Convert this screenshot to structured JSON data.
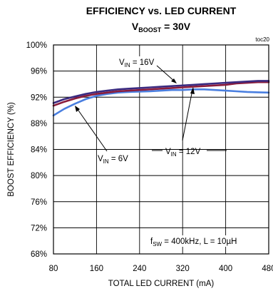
{
  "chart_data": {
    "type": "line",
    "title": "EFFICIENCY vs. LED CURRENT",
    "subtitle": {
      "main": "V",
      "sub": "BOOST",
      "rest": " = 30V"
    },
    "figure_tag": "toc20",
    "xlabel": "TOTAL LED CURRENT (mA)",
    "ylabel": "BOOST EFFICIENCY (%)",
    "xlim": [
      80,
      480
    ],
    "ylim": [
      68,
      100
    ],
    "x_ticks": [
      80,
      160,
      240,
      320,
      400,
      480
    ],
    "y_ticks": [
      68,
      72,
      76,
      80,
      84,
      88,
      92,
      96,
      100
    ],
    "y_tick_labels": [
      "68%",
      "72%",
      "76%",
      "80%",
      "84%",
      "88%",
      "92%",
      "96%",
      "100%"
    ],
    "grid": true,
    "series": [
      {
        "name": "VIN = 6V",
        "color": "#4a7fe0",
        "x": [
          80,
          100,
          120,
          140,
          160,
          180,
          200,
          220,
          240,
          260,
          280,
          300,
          320,
          340,
          360,
          380,
          400,
          420,
          440,
          460,
          480
        ],
        "y": [
          89.2,
          90.2,
          91.0,
          91.7,
          92.2,
          92.5,
          92.7,
          92.8,
          92.85,
          92.9,
          93.0,
          93.1,
          93.1,
          93.2,
          93.2,
          93.1,
          93.0,
          92.9,
          92.8,
          92.75,
          92.7
        ]
      },
      {
        "name": "VIN = 12V",
        "color": "#8a1c3c",
        "x": [
          80,
          100,
          120,
          140,
          160,
          180,
          200,
          220,
          240,
          260,
          280,
          300,
          320,
          340,
          360,
          380,
          400,
          420,
          440,
          460,
          480
        ],
        "y": [
          90.7,
          91.3,
          91.8,
          92.2,
          92.5,
          92.7,
          92.9,
          93.0,
          93.1,
          93.2,
          93.3,
          93.4,
          93.5,
          93.6,
          93.7,
          93.8,
          93.9,
          94.1,
          94.2,
          94.3,
          94.3
        ]
      },
      {
        "name": "VIN = 16V",
        "color": "#3a2a80",
        "x": [
          80,
          100,
          120,
          140,
          160,
          180,
          200,
          220,
          240,
          260,
          280,
          300,
          320,
          340,
          360,
          380,
          400,
          420,
          440,
          460,
          480
        ],
        "y": [
          91.1,
          91.7,
          92.1,
          92.5,
          92.8,
          93.0,
          93.2,
          93.3,
          93.4,
          93.5,
          93.6,
          93.7,
          93.8,
          93.9,
          94.0,
          94.1,
          94.2,
          94.3,
          94.4,
          94.5,
          94.5
        ]
      }
    ],
    "annotations": [
      {
        "main": "V",
        "sub": "IN",
        "rest": " = 16V",
        "target_series": "VIN = 16V"
      },
      {
        "main": "V",
        "sub": "IN",
        "rest": " = 12V",
        "target_series": "VIN = 12V"
      },
      {
        "main": "V",
        "sub": "IN",
        "rest": " = 6V",
        "target_series": "VIN = 6V"
      },
      {
        "main": "f",
        "sub": "SW",
        "rest": " = 400kHz, L = 10µH",
        "target_series": ""
      }
    ]
  }
}
